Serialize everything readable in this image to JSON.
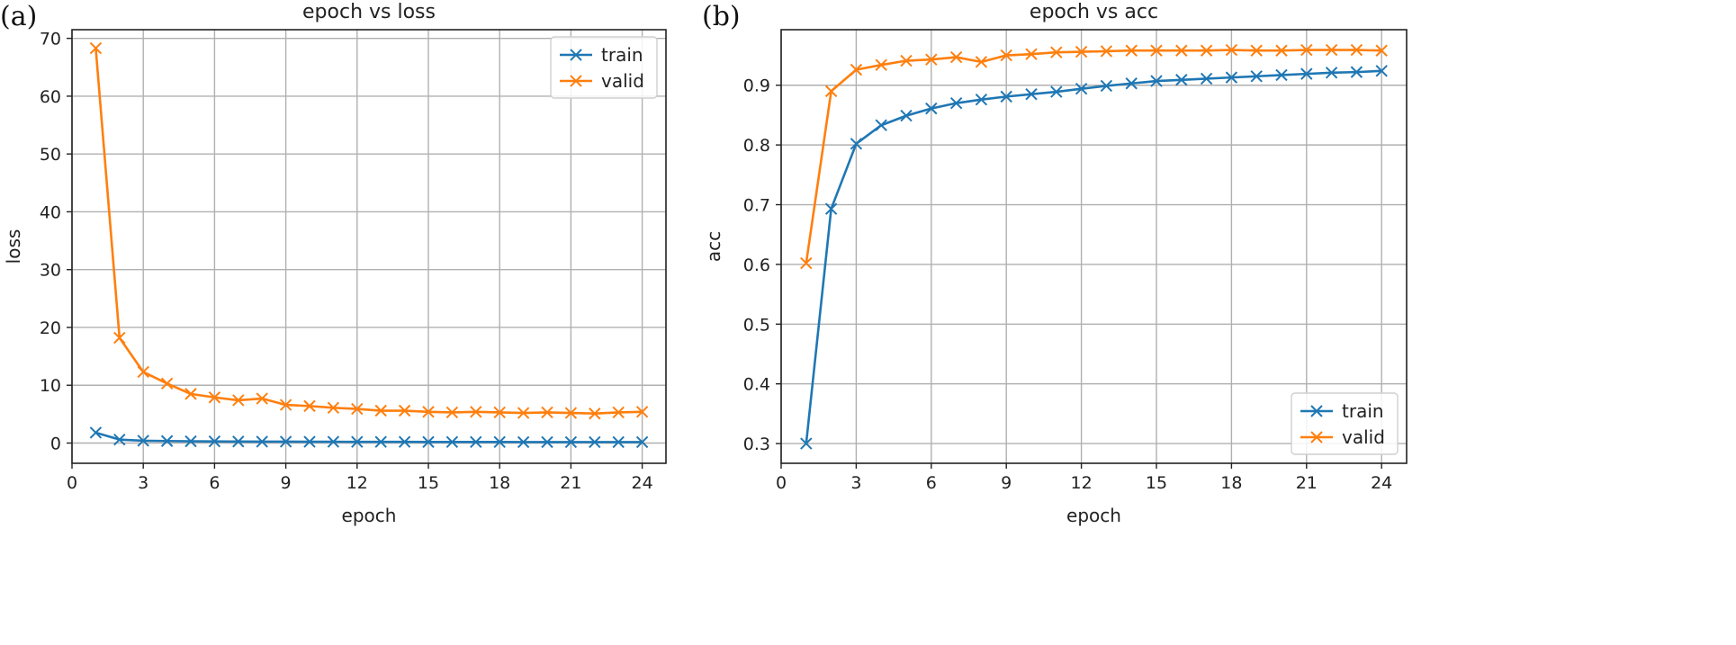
{
  "chart_data": [
    {
      "type": "line",
      "panel_label": "(a)",
      "title": "epoch vs loss",
      "xlabel": "epoch",
      "ylabel": "loss",
      "xlim": [
        0,
        25
      ],
      "ylim": [
        -3.5,
        71.5
      ],
      "xticks": [
        0,
        3,
        6,
        9,
        12,
        15,
        18,
        21,
        24
      ],
      "yticks": [
        0,
        10,
        20,
        30,
        40,
        50,
        60,
        70
      ],
      "grid": true,
      "legend": "top-right",
      "x": [
        1,
        2,
        3,
        4,
        5,
        6,
        7,
        8,
        9,
        10,
        11,
        12,
        13,
        14,
        15,
        16,
        17,
        18,
        19,
        20,
        21,
        22,
        23,
        24
      ],
      "series": [
        {
          "name": "train",
          "color": "#1f77b4",
          "values": [
            1.8,
            0.6,
            0.4,
            0.35,
            0.3,
            0.28,
            0.26,
            0.25,
            0.24,
            0.23,
            0.22,
            0.21,
            0.2,
            0.2,
            0.19,
            0.19,
            0.18,
            0.18,
            0.17,
            0.17,
            0.17,
            0.16,
            0.16,
            0.16
          ]
        },
        {
          "name": "valid",
          "color": "#ff7f0e",
          "values": [
            68.3,
            18.2,
            12.3,
            10.3,
            8.5,
            7.9,
            7.4,
            7.7,
            6.6,
            6.4,
            6.1,
            5.9,
            5.6,
            5.6,
            5.4,
            5.3,
            5.4,
            5.3,
            5.2,
            5.3,
            5.2,
            5.1,
            5.3,
            5.4
          ]
        }
      ]
    },
    {
      "type": "line",
      "panel_label": "(b)",
      "title": "epoch vs acc",
      "xlabel": "epoch",
      "ylabel": "acc",
      "xlim": [
        0,
        25
      ],
      "ylim": [
        0.267,
        0.993
      ],
      "xticks": [
        0,
        3,
        6,
        9,
        12,
        15,
        18,
        21,
        24
      ],
      "yticks": [
        0.3,
        0.4,
        0.5,
        0.6,
        0.7,
        0.8,
        0.9
      ],
      "grid": true,
      "legend": "bottom-right",
      "x": [
        1,
        2,
        3,
        4,
        5,
        6,
        7,
        8,
        9,
        10,
        11,
        12,
        13,
        14,
        15,
        16,
        17,
        18,
        19,
        20,
        21,
        22,
        23,
        24
      ],
      "series": [
        {
          "name": "train",
          "color": "#1f77b4",
          "values": [
            0.3,
            0.693,
            0.802,
            0.833,
            0.849,
            0.861,
            0.87,
            0.876,
            0.881,
            0.885,
            0.889,
            0.894,
            0.899,
            0.903,
            0.907,
            0.909,
            0.911,
            0.913,
            0.915,
            0.917,
            0.919,
            0.921,
            0.922,
            0.924
          ]
        },
        {
          "name": "valid",
          "color": "#ff7f0e",
          "values": [
            0.602,
            0.89,
            0.926,
            0.934,
            0.941,
            0.943,
            0.947,
            0.939,
            0.95,
            0.952,
            0.955,
            0.956,
            0.957,
            0.958,
            0.958,
            0.958,
            0.958,
            0.959,
            0.958,
            0.958,
            0.959,
            0.959,
            0.959,
            0.958
          ]
        }
      ]
    }
  ]
}
